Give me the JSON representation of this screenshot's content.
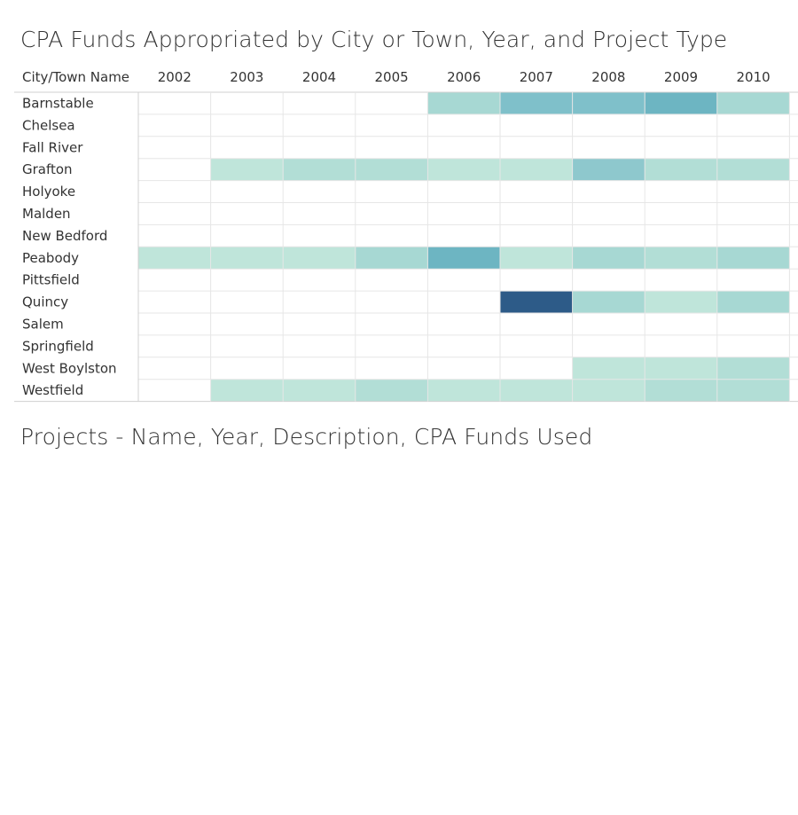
{
  "dashboard": {
    "title": "CPA Funds Appropriated by City or Town, Year, and Project Type",
    "section_title": "Projects - Name, Year, Description, CPA Funds Used"
  },
  "colors": {
    "scale": [
      "#bfe5da",
      "#b2ded6",
      "#a7d8d3",
      "#8ec8cd",
      "#7fc0ca",
      "#6db5c2",
      "#2d5b88"
    ],
    "grid": "#e6e6e6",
    "axis": "#d0d0d0"
  },
  "chart_data": {
    "type": "heatmap",
    "title": "",
    "row_header": "City/Town Name",
    "columns": [
      "2002",
      "2003",
      "2004",
      "2005",
      "2006",
      "2007",
      "2008",
      "2009",
      "2010"
    ],
    "rows": [
      "Barnstable",
      "Chelsea",
      "Fall River",
      "Grafton",
      "Holyoke",
      "Malden",
      "New Bedford",
      "Peabody",
      "Pittsfield",
      "Quincy",
      "Salem",
      "Springfield",
      "West Boylston",
      "Westfield"
    ],
    "values": [
      [
        null,
        null,
        null,
        null,
        2,
        4,
        4,
        5,
        2
      ],
      [
        null,
        null,
        null,
        null,
        null,
        null,
        null,
        null,
        null
      ],
      [
        null,
        null,
        null,
        null,
        null,
        null,
        null,
        null,
        null
      ],
      [
        null,
        0,
        1,
        1,
        0,
        0,
        3,
        1,
        1
      ],
      [
        null,
        null,
        null,
        null,
        null,
        null,
        null,
        null,
        null
      ],
      [
        null,
        null,
        null,
        null,
        null,
        null,
        null,
        null,
        null
      ],
      [
        null,
        null,
        null,
        null,
        null,
        null,
        null,
        null,
        null
      ],
      [
        0,
        0,
        0,
        2,
        5,
        0,
        2,
        1,
        2
      ],
      [
        null,
        null,
        null,
        null,
        null,
        null,
        null,
        null,
        null
      ],
      [
        null,
        null,
        null,
        null,
        null,
        6,
        2,
        0,
        2
      ],
      [
        null,
        null,
        null,
        null,
        null,
        null,
        null,
        null,
        null
      ],
      [
        null,
        null,
        null,
        null,
        null,
        null,
        null,
        null,
        null
      ],
      [
        null,
        null,
        null,
        null,
        null,
        null,
        0,
        0,
        1
      ],
      [
        null,
        0,
        0,
        1,
        0,
        0,
        0,
        1,
        1
      ]
    ],
    "value_scale": "relative intensity 0 (lightest) to 6 (darkest); null = no funds",
    "grid": true
  }
}
